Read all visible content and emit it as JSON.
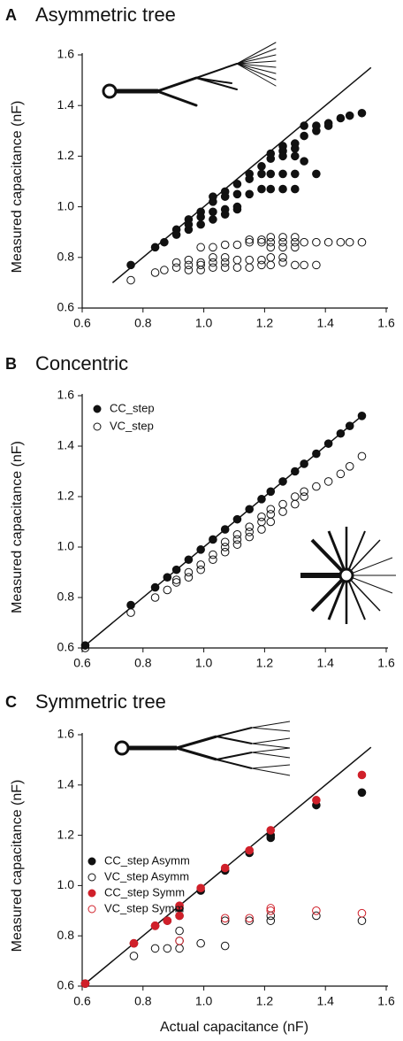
{
  "chart_data": [
    {
      "type": "scatter",
      "panel": "A",
      "title": "Asymmetric tree",
      "y_label": "Measured capacitance (nF)",
      "xlim": [
        0.6,
        1.6
      ],
      "ylim": [
        0.6,
        1.6
      ],
      "xticks": [
        0.6,
        0.8,
        {
          "value": 1,
          "label": "1.0"
        },
        1.2,
        1.4,
        1.6
      ],
      "yticks": [
        0.6,
        0.8,
        {
          "value": 1,
          "label": "1.0"
        },
        1.2,
        1.4,
        1.6
      ],
      "reference_line": {
        "x": [
          0.7,
          1.55
        ],
        "y": [
          0.7,
          1.55
        ]
      },
      "series": [
        {
          "color": "#111111",
          "marker": "filled",
          "x": [
            0.76,
            0.84,
            0.87,
            0.91,
            0.95,
            0.99,
            1.03,
            1.07,
            1.11,
            1.15,
            1.19,
            1.22,
            1.26,
            1.3,
            1.33,
            1.37,
            1.41,
            1.45,
            1.48,
            1.52,
            0.91,
            0.95,
            0.99,
            1.03,
            1.07,
            1.11,
            0.95,
            0.99,
            1.03,
            1.07,
            1.11,
            1.03,
            1.07,
            1.11,
            1.15,
            1.19,
            1.22,
            1.26,
            1.3,
            1.15,
            1.19,
            1.22,
            1.26,
            1.3,
            1.37,
            1.22,
            1.26,
            1.3,
            1.33,
            1.33,
            1.37,
            1.41,
            1.3,
            1.26
          ],
          "values": [
            0.77,
            0.84,
            0.86,
            0.91,
            0.95,
            0.98,
            1.02,
            1.06,
            1.09,
            1.13,
            1.16,
            1.19,
            1.22,
            1.25,
            1.28,
            1.3,
            1.33,
            1.35,
            1.36,
            1.37,
            0.89,
            0.91,
            0.93,
            0.95,
            0.97,
            0.99,
            0.93,
            0.96,
            0.98,
            0.99,
            1.0,
            1.04,
            1.04,
            1.05,
            1.05,
            1.07,
            1.07,
            1.07,
            1.07,
            1.11,
            1.13,
            1.13,
            1.13,
            1.13,
            1.13,
            1.21,
            1.2,
            1.2,
            1.18,
            1.32,
            1.32,
            1.32,
            1.23,
            1.24
          ]
        },
        {
          "color": "#111111",
          "marker": "open",
          "x": [
            0.76,
            0.84,
            0.87,
            0.91,
            0.91,
            0.95,
            0.95,
            0.95,
            0.99,
            0.99,
            0.99,
            0.99,
            1.03,
            1.03,
            1.03,
            1.03,
            1.07,
            1.07,
            1.07,
            1.07,
            1.11,
            1.11,
            1.11,
            1.15,
            1.15,
            1.15,
            1.15,
            1.19,
            1.19,
            1.19,
            1.19,
            1.22,
            1.22,
            1.22,
            1.22,
            1.22,
            1.26,
            1.26,
            1.26,
            1.26,
            1.26,
            1.3,
            1.3,
            1.3,
            1.3,
            1.33,
            1.33,
            1.37,
            1.37,
            1.41,
            1.45,
            1.48,
            1.52
          ],
          "values": [
            0.71,
            0.74,
            0.75,
            0.76,
            0.78,
            0.75,
            0.77,
            0.79,
            0.75,
            0.77,
            0.78,
            0.84,
            0.76,
            0.78,
            0.8,
            0.84,
            0.76,
            0.78,
            0.8,
            0.85,
            0.76,
            0.79,
            0.85,
            0.76,
            0.79,
            0.86,
            0.87,
            0.77,
            0.79,
            0.86,
            0.87,
            0.77,
            0.8,
            0.84,
            0.86,
            0.88,
            0.78,
            0.8,
            0.84,
            0.86,
            0.88,
            0.77,
            0.84,
            0.86,
            0.88,
            0.77,
            0.86,
            0.77,
            0.86,
            0.86,
            0.86,
            0.86,
            0.86
          ]
        }
      ]
    },
    {
      "type": "scatter",
      "panel": "B",
      "title": "Concentric",
      "y_label": "Measured capacitance (nF)",
      "xlim": [
        0.6,
        1.6
      ],
      "ylim": [
        0.6,
        1.6
      ],
      "xticks": [
        0.6,
        0.8,
        {
          "value": 1,
          "label": "1.0"
        },
        1.2,
        1.4,
        1.6
      ],
      "yticks": [
        0.6,
        0.8,
        {
          "value": 1,
          "label": "1.0"
        },
        1.2,
        1.4,
        1.6
      ],
      "reference_line": {
        "x": [
          0.6,
          1.53
        ],
        "y": [
          0.6,
          1.53
        ]
      },
      "legend": "upper left",
      "series": [
        {
          "name": "CC_step",
          "color": "#111111",
          "marker": "filled",
          "x": [
            0.61,
            0.76,
            0.84,
            0.88,
            0.91,
            0.95,
            0.99,
            1.03,
            1.07,
            1.11,
            1.15,
            1.19,
            1.22,
            1.26,
            1.3,
            1.33,
            1.37,
            1.41,
            1.45,
            1.48,
            1.52
          ],
          "values": [
            0.61,
            0.77,
            0.84,
            0.88,
            0.91,
            0.95,
            0.99,
            1.03,
            1.07,
            1.11,
            1.15,
            1.19,
            1.22,
            1.26,
            1.3,
            1.33,
            1.37,
            1.41,
            1.45,
            1.48,
            1.52
          ]
        },
        {
          "name": "VC_step",
          "color": "#111111",
          "marker": "open",
          "x": [
            0.61,
            0.76,
            0.84,
            0.88,
            0.91,
            0.91,
            0.95,
            0.95,
            0.99,
            0.99,
            1.03,
            1.03,
            1.07,
            1.07,
            1.07,
            1.11,
            1.11,
            1.11,
            1.15,
            1.15,
            1.15,
            1.19,
            1.19,
            1.19,
            1.22,
            1.22,
            1.22,
            1.26,
            1.26,
            1.3,
            1.3,
            1.33,
            1.33,
            1.37,
            1.41,
            1.45,
            1.48,
            1.52
          ],
          "values": [
            0.6,
            0.74,
            0.8,
            0.83,
            0.86,
            0.87,
            0.88,
            0.9,
            0.91,
            0.93,
            0.95,
            0.97,
            0.98,
            1.0,
            1.02,
            1.01,
            1.03,
            1.05,
            1.04,
            1.06,
            1.08,
            1.07,
            1.1,
            1.12,
            1.1,
            1.13,
            1.15,
            1.14,
            1.17,
            1.17,
            1.2,
            1.2,
            1.22,
            1.24,
            1.26,
            1.29,
            1.32,
            1.36
          ]
        }
      ]
    },
    {
      "type": "scatter",
      "panel": "C",
      "title": "Symmetric tree",
      "y_label": "Measured capacitance (nF)",
      "x_label": "Actual capacitance (nF)",
      "xlim": [
        0.6,
        1.6
      ],
      "ylim": [
        0.6,
        1.6
      ],
      "xticks": [
        0.6,
        0.8,
        {
          "value": 1,
          "label": "1.0"
        },
        1.2,
        1.4,
        1.6
      ],
      "yticks": [
        0.6,
        0.8,
        {
          "value": 1,
          "label": "1.0"
        },
        1.2,
        1.4,
        1.6
      ],
      "reference_line": {
        "x": [
          0.6,
          1.55
        ],
        "y": [
          0.6,
          1.55
        ]
      },
      "legend": "center left",
      "series": [
        {
          "name": "CC_step Asymm",
          "color": "#111111",
          "marker": "filled",
          "x": [
            0.61,
            0.77,
            0.84,
            0.88,
            0.92,
            0.92,
            0.99,
            1.07,
            1.15,
            1.22,
            1.22,
            1.37,
            1.52
          ],
          "values": [
            0.61,
            0.77,
            0.84,
            0.86,
            0.91,
            0.88,
            0.98,
            1.06,
            1.13,
            1.2,
            1.19,
            1.32,
            1.37
          ]
        },
        {
          "name": "VC_step Asymm",
          "color": "#111111",
          "marker": "open",
          "x": [
            0.61,
            0.77,
            0.84,
            0.88,
            0.92,
            0.92,
            0.92,
            0.99,
            1.07,
            1.07,
            1.15,
            1.22,
            1.22,
            1.37,
            1.52
          ],
          "values": [
            0.61,
            0.72,
            0.75,
            0.75,
            0.75,
            0.78,
            0.82,
            0.77,
            0.76,
            0.86,
            0.86,
            0.86,
            0.88,
            0.88,
            0.86
          ]
        },
        {
          "name": "CC_step Symm",
          "color": "#d0202a",
          "marker": "filled",
          "x": [
            0.61,
            0.77,
            0.84,
            0.88,
            0.92,
            0.92,
            0.99,
            1.07,
            1.15,
            1.22,
            1.37,
            1.52
          ],
          "values": [
            0.61,
            0.77,
            0.84,
            0.86,
            0.88,
            0.92,
            0.99,
            1.07,
            1.14,
            1.22,
            1.34,
            1.44
          ]
        },
        {
          "name": "VC_step Symm",
          "color": "#d0202a",
          "marker": "open",
          "x": [
            0.77,
            0.84,
            0.92,
            1.07,
            1.15,
            1.22,
            1.22,
            1.37,
            1.52
          ],
          "values": [
            0.77,
            0.84,
            0.78,
            0.87,
            0.87,
            0.9,
            0.91,
            0.9,
            0.89
          ]
        }
      ]
    }
  ]
}
